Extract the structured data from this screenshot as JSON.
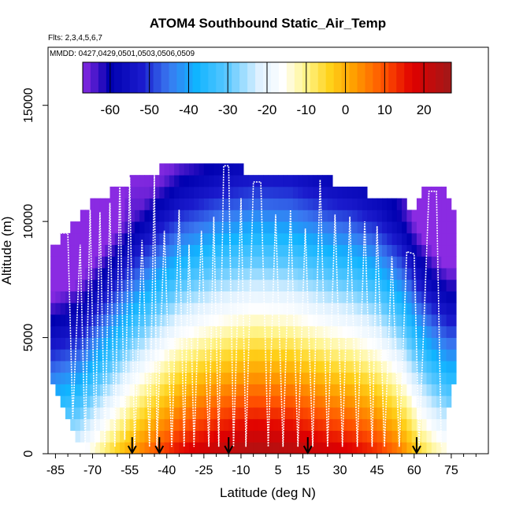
{
  "chart_data": {
    "type": "heatmap",
    "title": "ATOM4 Southbound Static_Air_Temp",
    "subtitle_flights": "Flts: 2,3,4,5,6,7",
    "subtitle_dates": "MMDD: 0427,0429,0501,0503,0506,0509",
    "xlabel": "Latitude (deg N)",
    "ylabel": "Altitude (m)",
    "xlim": [
      -88,
      90
    ],
    "ylim": [
      0,
      17500
    ],
    "x_ticks": [
      -85,
      -70,
      -55,
      -40,
      -25,
      -10,
      5,
      15,
      30,
      45,
      60,
      75
    ],
    "x_tick_labels": [
      "-85",
      "-70",
      "-55",
      "-40",
      "-25",
      "-10",
      "5",
      "15",
      "30",
      "45",
      "60",
      "75"
    ],
    "x_minor_ticks": [
      -80,
      -75,
      -65,
      -60,
      -50,
      -45,
      -35,
      -30,
      -20,
      -15,
      -5,
      0,
      10,
      20,
      25,
      35,
      40,
      50,
      55,
      65,
      70,
      80,
      85
    ],
    "y_ticks": [
      0,
      5000,
      10000,
      15000
    ],
    "y_tick_labels": [
      "0",
      "5000",
      "10000",
      "15000"
    ],
    "colorbar": {
      "range": [
        -67,
        27
      ],
      "ticks": [
        -60,
        -50,
        -40,
        -30,
        -20,
        -10,
        0,
        10,
        20
      ],
      "tick_labels": [
        "-60",
        "-50",
        "-40",
        "-30",
        "-20",
        "-10",
        "0",
        "10",
        "20"
      ],
      "color_stops": [
        {
          "value": -67,
          "color": "#8a2be2"
        },
        {
          "value": -60,
          "color": "#0000b0"
        },
        {
          "value": -52,
          "color": "#1a1acc"
        },
        {
          "value": -45,
          "color": "#3a78f0"
        },
        {
          "value": -38,
          "color": "#10b4ff"
        },
        {
          "value": -30,
          "color": "#5cc8ff"
        },
        {
          "value": -22,
          "color": "#dff1ff"
        },
        {
          "value": -16,
          "color": "#ffffff"
        },
        {
          "value": -10,
          "color": "#fff48a"
        },
        {
          "value": -4,
          "color": "#ffd21a"
        },
        {
          "value": 2,
          "color": "#ffa000"
        },
        {
          "value": 10,
          "color": "#ff5000"
        },
        {
          "value": 17,
          "color": "#e00000"
        },
        {
          "value": 27,
          "color": "#a01818"
        }
      ]
    },
    "surface_temp_profile": [
      {
        "lat": -86,
        "t": -22
      },
      {
        "lat": -75,
        "t": -18
      },
      {
        "lat": -65,
        "t": -8
      },
      {
        "lat": -55,
        "t": 2
      },
      {
        "lat": -45,
        "t": 10
      },
      {
        "lat": -35,
        "t": 17
      },
      {
        "lat": -20,
        "t": 22
      },
      {
        "lat": -5,
        "t": 25
      },
      {
        "lat": 10,
        "t": 24
      },
      {
        "lat": 25,
        "t": 20
      },
      {
        "lat": 35,
        "t": 18
      },
      {
        "lat": 45,
        "t": 14
      },
      {
        "lat": 55,
        "t": 6
      },
      {
        "lat": 62,
        "t": -4
      },
      {
        "lat": 68,
        "t": -10
      },
      {
        "lat": 74,
        "t": -14
      }
    ],
    "tropopause_profile": [
      {
        "lat": -86,
        "alt": 8000
      },
      {
        "lat": -78,
        "alt": 8600
      },
      {
        "lat": -65,
        "alt": 9500
      },
      {
        "lat": -55,
        "alt": 10000
      },
      {
        "lat": -45,
        "alt": 11500
      },
      {
        "lat": -35,
        "alt": 12500
      },
      {
        "lat": -20,
        "alt": 12500
      },
      {
        "lat": 0,
        "alt": 12000
      },
      {
        "lat": 20,
        "alt": 12000
      },
      {
        "lat": 30,
        "alt": 11500
      },
      {
        "lat": 40,
        "alt": 11000
      },
      {
        "lat": 50,
        "alt": 10300
      },
      {
        "lat": 60,
        "alt": 10000
      },
      {
        "lat": 66,
        "alt": 11200
      },
      {
        "lat": 74,
        "alt": 10800
      }
    ],
    "data_top_profile": [
      {
        "lat": -86,
        "alt": 9000
      },
      {
        "lat": -80,
        "alt": 9600
      },
      {
        "lat": -76,
        "alt": 10200
      },
      {
        "lat": -70,
        "alt": 10800
      },
      {
        "lat": -66,
        "alt": 11000
      },
      {
        "lat": -60,
        "alt": 11400
      },
      {
        "lat": -55,
        "alt": 11800
      },
      {
        "lat": -48,
        "alt": 11900
      },
      {
        "lat": -42,
        "alt": 12400
      },
      {
        "lat": -20,
        "alt": 12400
      },
      {
        "lat": 0,
        "alt": 12100
      },
      {
        "lat": 10,
        "alt": 12000
      },
      {
        "lat": 20,
        "alt": 11900
      },
      {
        "lat": 30,
        "alt": 11700
      },
      {
        "lat": 45,
        "alt": 11100
      },
      {
        "lat": 55,
        "alt": 10800
      },
      {
        "lat": 60,
        "alt": 10600
      },
      {
        "lat": 64,
        "alt": 11500
      },
      {
        "lat": 72,
        "alt": 11500
      },
      {
        "lat": 75,
        "alt": 10500
      }
    ],
    "data_bottom_profile": [
      {
        "lat": -86,
        "alt": 2900
      },
      {
        "lat": -82,
        "alt": 2000
      },
      {
        "lat": -78,
        "alt": 1000
      },
      {
        "lat": -74,
        "alt": 300
      },
      {
        "lat": -70,
        "alt": 0
      },
      {
        "lat": 72,
        "alt": 0
      },
      {
        "lat": 75,
        "alt": 3000
      }
    ],
    "flight_track": [
      {
        "lat": -85,
        "alt": 9500
      },
      {
        "lat": -80,
        "alt": 9500
      },
      {
        "lat": -78,
        "alt": 1500
      },
      {
        "lat": -75,
        "alt": 9000
      },
      {
        "lat": -73,
        "alt": 400
      },
      {
        "lat": -71,
        "alt": 10500
      },
      {
        "lat": -69,
        "alt": 300
      },
      {
        "lat": -67,
        "alt": 10400
      },
      {
        "lat": -65,
        "alt": 300
      },
      {
        "lat": -63,
        "alt": 10800
      },
      {
        "lat": -61,
        "alt": 300
      },
      {
        "lat": -59,
        "alt": 11700
      },
      {
        "lat": -57,
        "alt": 600
      },
      {
        "lat": -55,
        "alt": 11900
      },
      {
        "lat": -53,
        "alt": 300
      },
      {
        "lat": -50,
        "alt": 9200
      },
      {
        "lat": -47,
        "alt": 300
      },
      {
        "lat": -45,
        "alt": 12000
      },
      {
        "lat": -44,
        "alt": 300
      },
      {
        "lat": -41,
        "alt": 9600
      },
      {
        "lat": -38,
        "alt": 300
      },
      {
        "lat": -35,
        "alt": 10500
      },
      {
        "lat": -33,
        "alt": 300
      },
      {
        "lat": -31,
        "alt": 9000
      },
      {
        "lat": -29,
        "alt": 300
      },
      {
        "lat": -26,
        "alt": 9600
      },
      {
        "lat": -23,
        "alt": 300
      },
      {
        "lat": -21,
        "alt": 10200
      },
      {
        "lat": -19,
        "alt": 300
      },
      {
        "lat": -17,
        "alt": 12400
      },
      {
        "lat": -15,
        "alt": 12400
      },
      {
        "lat": -13,
        "alt": 300
      },
      {
        "lat": -10,
        "alt": 11000
      },
      {
        "lat": -8,
        "alt": 300
      },
      {
        "lat": -5,
        "alt": 11700
      },
      {
        "lat": -2,
        "alt": 11700
      },
      {
        "lat": 1,
        "alt": 300
      },
      {
        "lat": 4,
        "alt": 10300
      },
      {
        "lat": 7,
        "alt": 300
      },
      {
        "lat": 10,
        "alt": 10500
      },
      {
        "lat": 13,
        "alt": 300
      },
      {
        "lat": 16,
        "alt": 9700
      },
      {
        "lat": 19,
        "alt": 300
      },
      {
        "lat": 22,
        "alt": 11800
      },
      {
        "lat": 25,
        "alt": 300
      },
      {
        "lat": 28,
        "alt": 10300
      },
      {
        "lat": 31,
        "alt": 300
      },
      {
        "lat": 34,
        "alt": 10200
      },
      {
        "lat": 37,
        "alt": 300
      },
      {
        "lat": 40,
        "alt": 10000
      },
      {
        "lat": 43,
        "alt": 300
      },
      {
        "lat": 45,
        "alt": 9800
      },
      {
        "lat": 48,
        "alt": 300
      },
      {
        "lat": 51,
        "alt": 8500
      },
      {
        "lat": 54,
        "alt": 300
      },
      {
        "lat": 57,
        "alt": 8700
      },
      {
        "lat": 60,
        "alt": 8600
      },
      {
        "lat": 62,
        "alt": 300
      },
      {
        "lat": 66,
        "alt": 11300
      },
      {
        "lat": 69,
        "alt": 11300
      },
      {
        "lat": 71,
        "alt": 300
      }
    ],
    "arrow_markers_lat": [
      -54,
      -43,
      -15,
      17,
      61
    ]
  }
}
